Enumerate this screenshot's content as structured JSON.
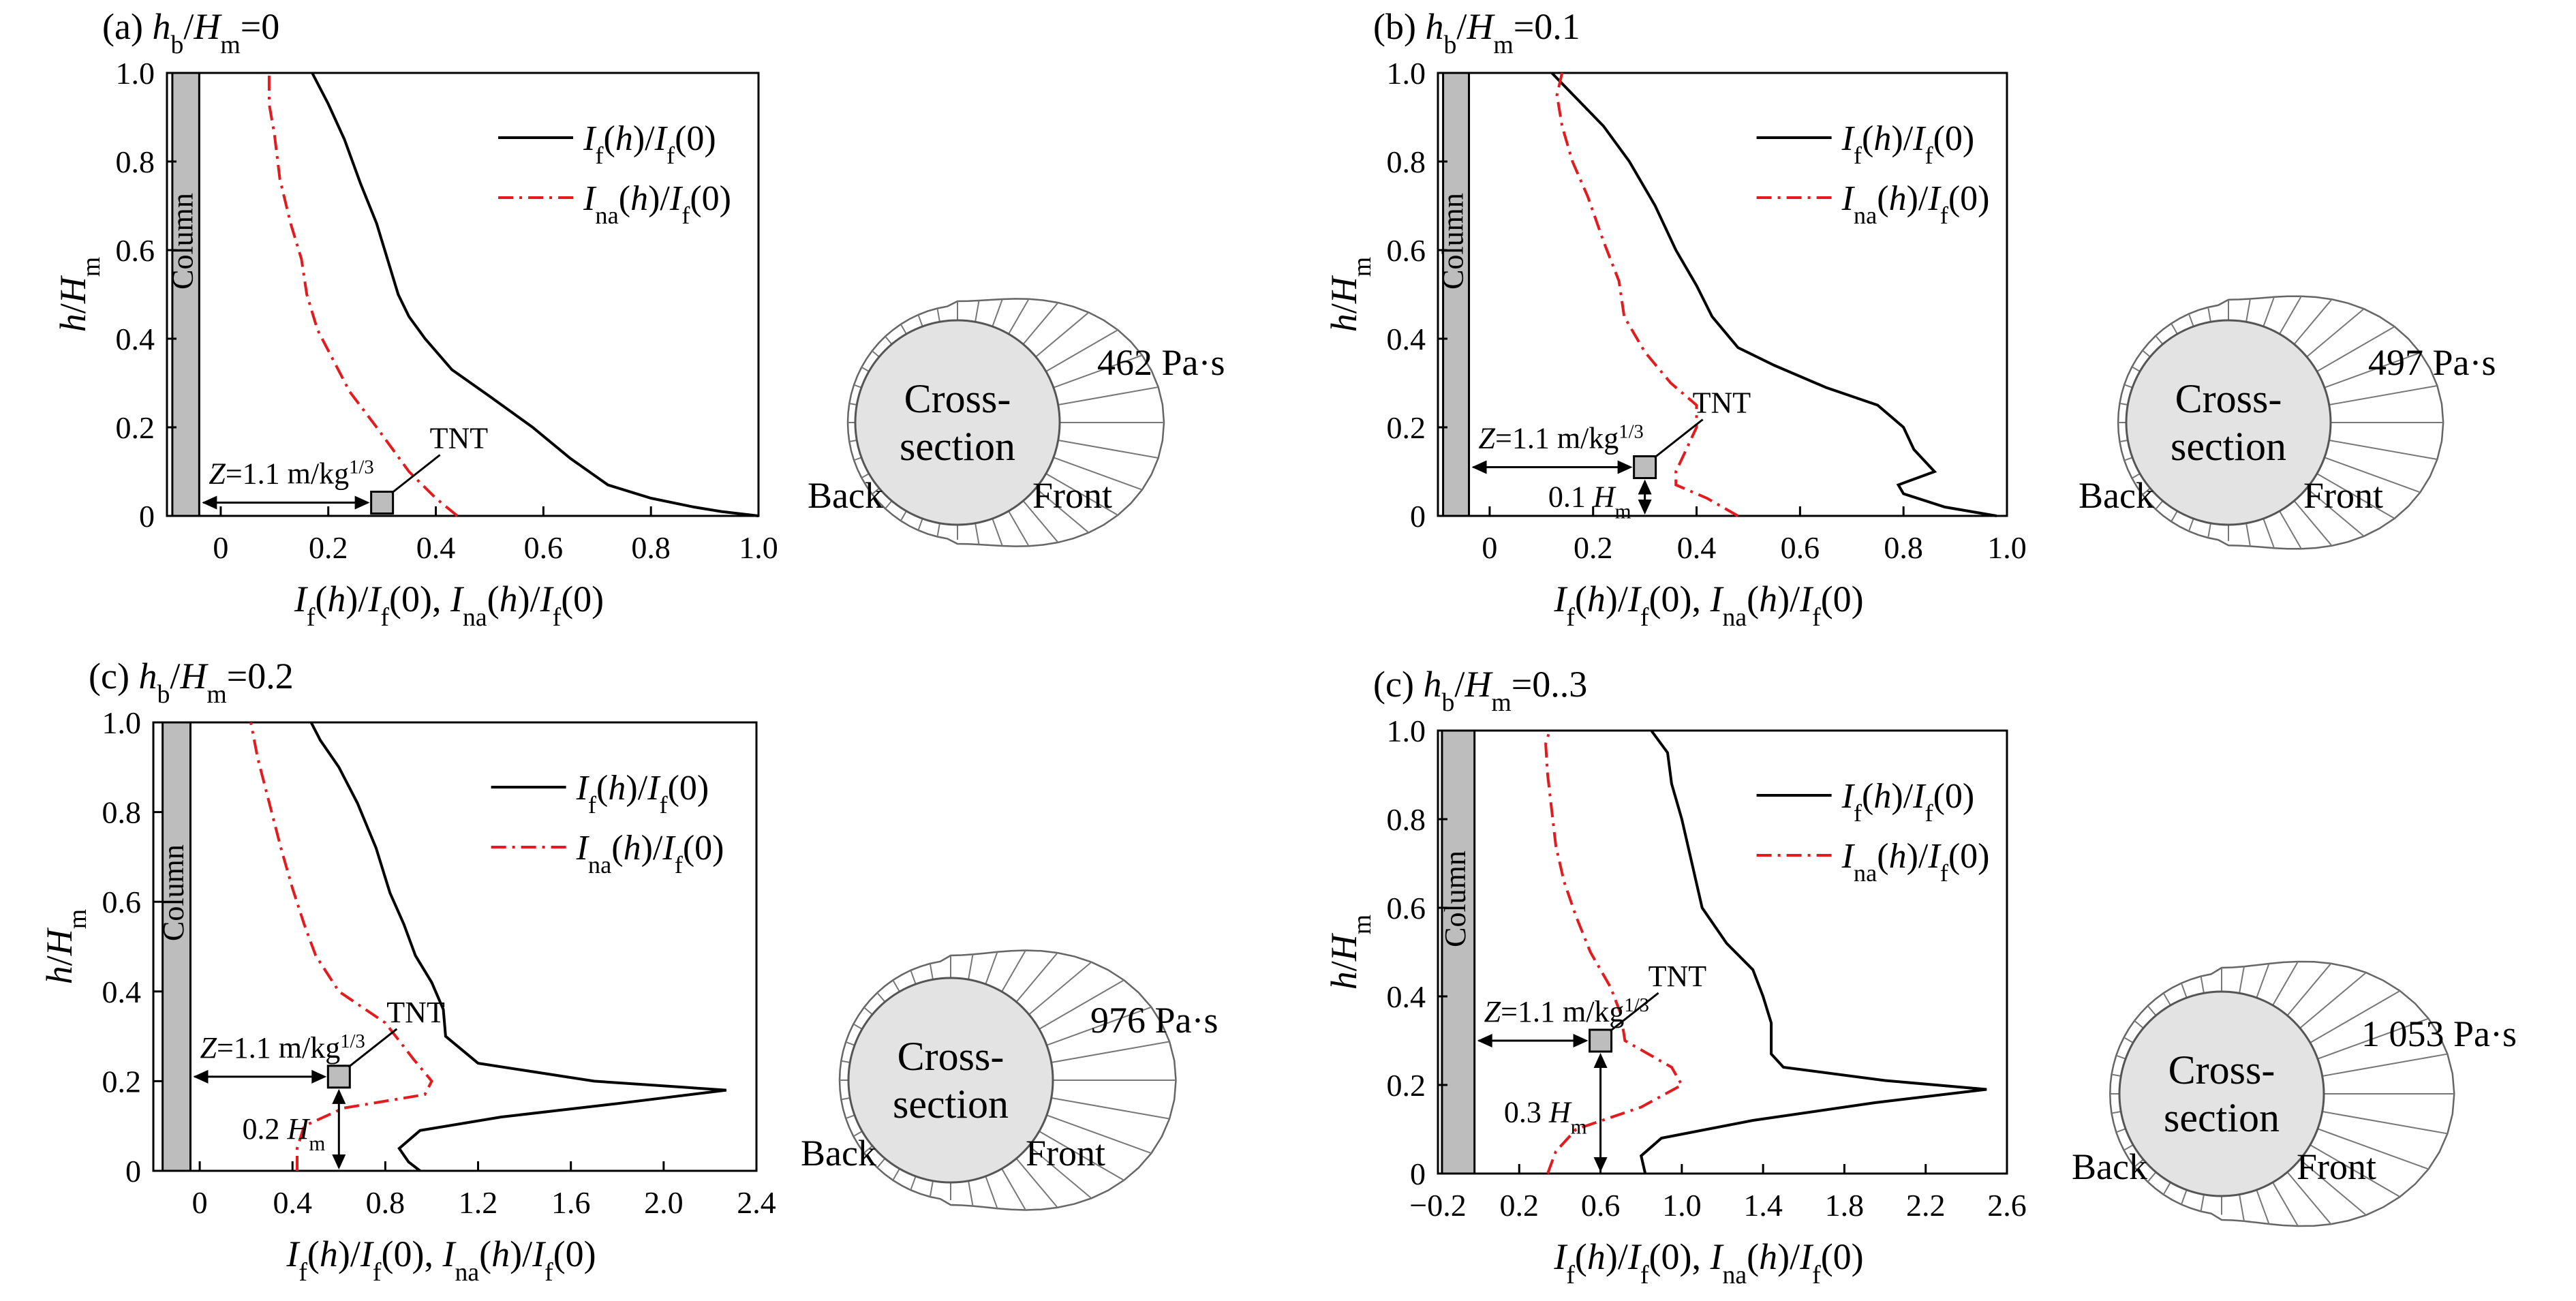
{
  "chart_data": [
    {
      "type": "line",
      "title": "(a) h_b/H_m=0",
      "title_parts": {
        "prefix": "(a) ",
        "value": "=0"
      },
      "xlim": [
        -0.1,
        1.0
      ],
      "ylim": [
        0,
        1.0
      ],
      "xticks": [
        "0",
        "0.2",
        "0.4",
        "0.6",
        "0.8",
        "1.0"
      ],
      "xtick_values": [
        0,
        0.2,
        0.4,
        0.6,
        0.8,
        1.0
      ],
      "yticks": [
        "0",
        "0.2",
        "0.4",
        "0.6",
        "0.8",
        "1.0"
      ],
      "series": [
        {
          "name": "If(h)/If(0)",
          "style": "solid",
          "color": "#000000",
          "points": [
            [
              1.0,
              0.0
            ],
            [
              0.93,
              0.01
            ],
            [
              0.88,
              0.02
            ],
            [
              0.8,
              0.04
            ],
            [
              0.72,
              0.07
            ],
            [
              0.65,
              0.13
            ],
            [
              0.58,
              0.2
            ],
            [
              0.5,
              0.27
            ],
            [
              0.43,
              0.33
            ],
            [
              0.38,
              0.4
            ],
            [
              0.35,
              0.45
            ],
            [
              0.33,
              0.5
            ],
            [
              0.31,
              0.58
            ],
            [
              0.29,
              0.66
            ],
            [
              0.26,
              0.75
            ],
            [
              0.23,
              0.85
            ],
            [
              0.2,
              0.93
            ],
            [
              0.17,
              1.0
            ]
          ]
        },
        {
          "name": "Ina(h)/If(0)",
          "style": "dashdot",
          "color": "#e41a1c",
          "points": [
            [
              0.44,
              0.0
            ],
            [
              0.4,
              0.04
            ],
            [
              0.35,
              0.1
            ],
            [
              0.29,
              0.2
            ],
            [
              0.24,
              0.28
            ],
            [
              0.21,
              0.35
            ],
            [
              0.18,
              0.42
            ],
            [
              0.16,
              0.5
            ],
            [
              0.15,
              0.58
            ],
            [
              0.13,
              0.66
            ],
            [
              0.11,
              0.76
            ],
            [
              0.1,
              0.86
            ],
            [
              0.09,
              0.93
            ],
            [
              0.09,
              1.0
            ]
          ]
        }
      ],
      "column": {
        "label": "Column",
        "xrange": [
          -0.09,
          -0.04
        ]
      },
      "charge": {
        "label": "TNT",
        "x": 0.3,
        "y": 0.03
      },
      "z_label": "Z=1.1 m/kg1/3",
      "height_label": "",
      "cross_section": {
        "impulse": "462 Pa·s",
        "text1": "Cross-",
        "text2": "section",
        "back": "Back",
        "front": "Front"
      }
    },
    {
      "type": "line",
      "title": "(b) h_b/H_m=0.1",
      "title_parts": {
        "prefix": "(b) ",
        "value": "=0.1"
      },
      "xlim": [
        -0.1,
        1.0
      ],
      "ylim": [
        0,
        1.0
      ],
      "xticks": [
        "0",
        "0.2",
        "0.4",
        "0.6",
        "0.8",
        "1.0"
      ],
      "xtick_values": [
        0,
        0.2,
        0.4,
        0.6,
        0.8,
        1.0
      ],
      "yticks": [
        "0",
        "0.2",
        "0.4",
        "0.6",
        "0.8",
        "1.0"
      ],
      "series": [
        {
          "name": "If(h)/If(0)",
          "style": "solid",
          "color": "#000000",
          "points": [
            [
              0.98,
              0.0
            ],
            [
              0.88,
              0.02
            ],
            [
              0.8,
              0.05
            ],
            [
              0.79,
              0.07
            ],
            [
              0.86,
              0.1
            ],
            [
              0.82,
              0.15
            ],
            [
              0.8,
              0.2
            ],
            [
              0.75,
              0.25
            ],
            [
              0.65,
              0.29
            ],
            [
              0.55,
              0.34
            ],
            [
              0.48,
              0.38
            ],
            [
              0.43,
              0.45
            ],
            [
              0.4,
              0.52
            ],
            [
              0.36,
              0.6
            ],
            [
              0.32,
              0.7
            ],
            [
              0.27,
              0.8
            ],
            [
              0.22,
              0.88
            ],
            [
              0.17,
              0.94
            ],
            [
              0.12,
              1.0
            ]
          ]
        },
        {
          "name": "Ina(h)/If(0)",
          "style": "dashdot",
          "color": "#e41a1c",
          "points": [
            [
              0.48,
              0.0
            ],
            [
              0.42,
              0.04
            ],
            [
              0.36,
              0.07
            ],
            [
              0.36,
              0.1
            ],
            [
              0.38,
              0.15
            ],
            [
              0.4,
              0.2
            ],
            [
              0.4,
              0.25
            ],
            [
              0.35,
              0.3
            ],
            [
              0.3,
              0.37
            ],
            [
              0.26,
              0.45
            ],
            [
              0.25,
              0.53
            ],
            [
              0.22,
              0.62
            ],
            [
              0.19,
              0.72
            ],
            [
              0.16,
              0.8
            ],
            [
              0.14,
              0.88
            ],
            [
              0.13,
              0.95
            ],
            [
              0.14,
              1.0
            ]
          ]
        }
      ],
      "column": {
        "label": "Column",
        "xrange": [
          -0.09,
          -0.04
        ]
      },
      "charge": {
        "label": "TNT",
        "x": 0.3,
        "y": 0.11
      },
      "z_label": "Z=1.1 m/kg1/3",
      "height_label": "0.1 H",
      "cross_section": {
        "impulse": "497 Pa·s",
        "text1": "Cross-",
        "text2": "section",
        "back": "Back",
        "front": "Front"
      }
    },
    {
      "type": "line",
      "title": "(c) h_b/H_m=0.2",
      "title_parts": {
        "prefix": "(c) ",
        "value": "=0.2"
      },
      "xlim": [
        -0.2,
        2.4
      ],
      "ylim": [
        0,
        1.0
      ],
      "xticks": [
        "0",
        "0.4",
        "0.8",
        "1.2",
        "1.6",
        "2.0",
        "2.4"
      ],
      "xtick_values": [
        0,
        0.4,
        0.8,
        1.2,
        1.6,
        2.0,
        2.4
      ],
      "yticks": [
        "0",
        "0.2",
        "0.4",
        "0.6",
        "0.8",
        "1.0"
      ],
      "series": [
        {
          "name": "If(h)/If(0)",
          "style": "solid",
          "color": "#000000",
          "points": [
            [
              0.95,
              0.0
            ],
            [
              0.9,
              0.02
            ],
            [
              0.86,
              0.05
            ],
            [
              0.95,
              0.09
            ],
            [
              1.3,
              0.12
            ],
            [
              1.8,
              0.15
            ],
            [
              2.27,
              0.18
            ],
            [
              1.7,
              0.2
            ],
            [
              1.2,
              0.24
            ],
            [
              1.06,
              0.3
            ],
            [
              1.05,
              0.36
            ],
            [
              1.0,
              0.42
            ],
            [
              0.93,
              0.48
            ],
            [
              0.88,
              0.55
            ],
            [
              0.82,
              0.62
            ],
            [
              0.76,
              0.72
            ],
            [
              0.68,
              0.82
            ],
            [
              0.6,
              0.9
            ],
            [
              0.52,
              0.96
            ],
            [
              0.48,
              1.0
            ]
          ]
        },
        {
          "name": "Ina(h)/If(0)",
          "style": "dashdot",
          "color": "#e41a1c",
          "points": [
            [
              0.42,
              0.0
            ],
            [
              0.42,
              0.05
            ],
            [
              0.45,
              0.1
            ],
            [
              0.62,
              0.14
            ],
            [
              0.97,
              0.17
            ],
            [
              1.0,
              0.2
            ],
            [
              0.92,
              0.25
            ],
            [
              0.8,
              0.33
            ],
            [
              0.6,
              0.4
            ],
            [
              0.5,
              0.48
            ],
            [
              0.45,
              0.55
            ],
            [
              0.4,
              0.63
            ],
            [
              0.35,
              0.72
            ],
            [
              0.3,
              0.82
            ],
            [
              0.25,
              0.92
            ],
            [
              0.22,
              1.0
            ]
          ]
        }
      ],
      "column": {
        "label": "Column",
        "xrange": [
          -0.16,
          -0.04
        ]
      },
      "charge": {
        "label": "TNT",
        "x": 0.6,
        "y": 0.21
      },
      "z_label": "Z=1.1 m/kg1/3",
      "height_label": "0.2 H",
      "cross_section": {
        "impulse": "976 Pa·s",
        "text1": "Cross-",
        "text2": "section",
        "back": "Back",
        "front": "Front"
      }
    },
    {
      "type": "line",
      "title": "(c) h_b/H_m=0..3",
      "title_parts": {
        "prefix": "(c) ",
        "value": "=0..3"
      },
      "xlim": [
        -0.2,
        2.6
      ],
      "ylim": [
        0,
        1.0
      ],
      "xticks": [
        "−0.2",
        "0.2",
        "0.6",
        "1.0",
        "1.4",
        "1.8",
        "2.2",
        "2.6"
      ],
      "xtick_values": [
        -0.2,
        0.2,
        0.6,
        1.0,
        1.4,
        1.8,
        2.2,
        2.6
      ],
      "yticks": [
        "0",
        "0.2",
        "0.4",
        "0.6",
        "0.8",
        "1.0"
      ],
      "series": [
        {
          "name": "If(h)/If(0)",
          "style": "solid",
          "color": "#000000",
          "points": [
            [
              0.82,
              0.0
            ],
            [
              0.8,
              0.04
            ],
            [
              0.9,
              0.08
            ],
            [
              1.35,
              0.12
            ],
            [
              1.95,
              0.16
            ],
            [
              2.5,
              0.19
            ],
            [
              2.0,
              0.21
            ],
            [
              1.5,
              0.24
            ],
            [
              1.44,
              0.27
            ],
            [
              1.44,
              0.34
            ],
            [
              1.4,
              0.4
            ],
            [
              1.35,
              0.46
            ],
            [
              1.22,
              0.52
            ],
            [
              1.1,
              0.6
            ],
            [
              1.05,
              0.7
            ],
            [
              1.0,
              0.8
            ],
            [
              0.95,
              0.88
            ],
            [
              0.93,
              0.95
            ],
            [
              0.85,
              1.0
            ]
          ]
        },
        {
          "name": "Ina(h)/If(0)",
          "style": "dashdot",
          "color": "#e41a1c",
          "points": [
            [
              0.34,
              0.0
            ],
            [
              0.38,
              0.05
            ],
            [
              0.48,
              0.1
            ],
            [
              0.8,
              0.15
            ],
            [
              1.0,
              0.2
            ],
            [
              0.95,
              0.24
            ],
            [
              0.72,
              0.3
            ],
            [
              0.7,
              0.36
            ],
            [
              0.65,
              0.42
            ],
            [
              0.55,
              0.5
            ],
            [
              0.48,
              0.58
            ],
            [
              0.42,
              0.66
            ],
            [
              0.38,
              0.74
            ],
            [
              0.36,
              0.82
            ],
            [
              0.34,
              0.9
            ],
            [
              0.33,
              0.97
            ],
            [
              0.35,
              1.0
            ]
          ]
        }
      ],
      "column": {
        "label": "Column",
        "xrange": [
          -0.18,
          -0.02
        ]
      },
      "charge": {
        "label": "TNT",
        "x": 0.6,
        "y": 0.3
      },
      "z_label": "Z=1.1 m/kg1/3",
      "height_label": "0.3 H",
      "cross_section": {
        "impulse": "1 053 Pa·s",
        "text1": "Cross-",
        "text2": "section",
        "back": "Back",
        "front": "Front"
      }
    }
  ]
}
